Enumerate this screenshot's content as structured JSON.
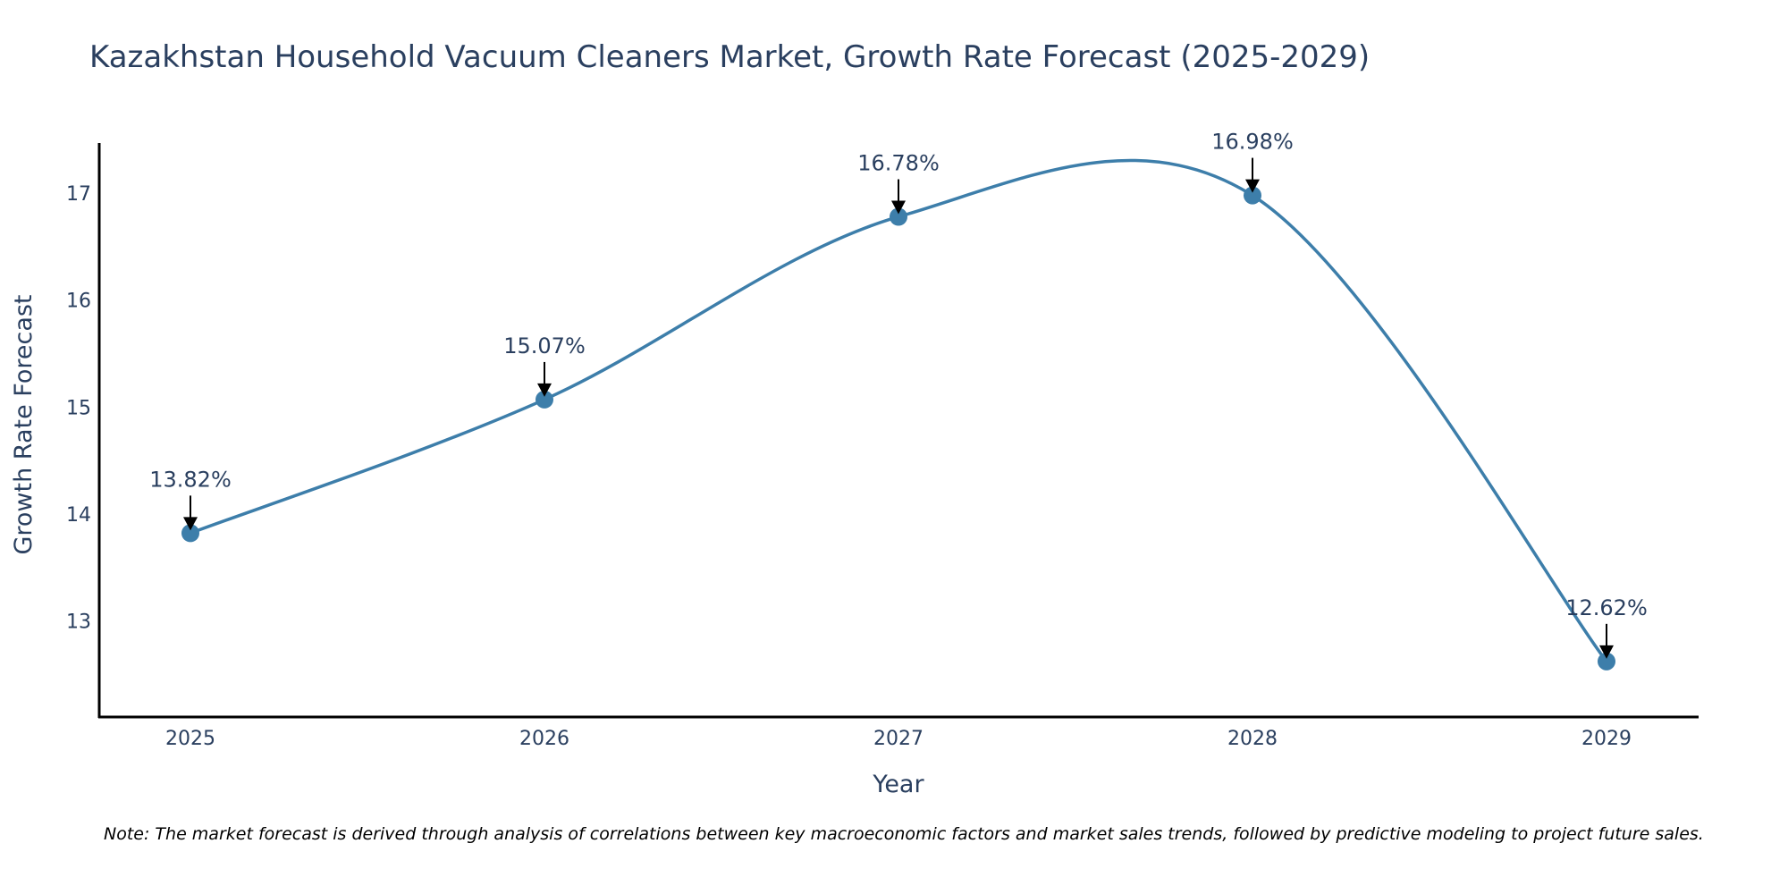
{
  "chart_data": {
    "type": "line",
    "title": "Kazakhstan Household Vacuum Cleaners Market, Growth Rate Forecast (2025-2029)",
    "xlabel": "Year",
    "ylabel": "Growth Rate Forecast",
    "categories": [
      "2025",
      "2026",
      "2027",
      "2028",
      "2029"
    ],
    "series": [
      {
        "name": "Growth Rate Forecast",
        "values": [
          13.82,
          15.07,
          16.78,
          16.98,
          12.62
        ]
      }
    ],
    "data_labels": [
      "13.82%",
      "15.07%",
      "16.78%",
      "16.98%",
      "12.62%"
    ],
    "yticks": [
      13,
      14,
      15,
      16,
      17
    ],
    "ylim": [
      12.1,
      17.47
    ],
    "grid": false,
    "line_color": "#3d7eaa",
    "marker_color": "#3d7eaa",
    "note": "Note: The market forecast is derived through analysis of correlations between key macroeconomic factors and market sales trends, followed by predictive modeling to project future sales."
  }
}
